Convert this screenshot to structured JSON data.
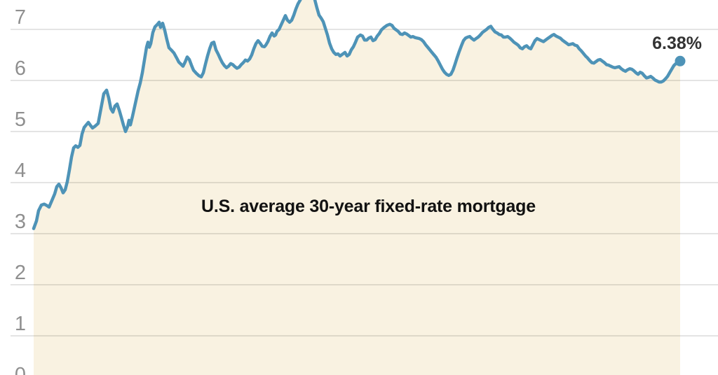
{
  "chart_data": {
    "type": "area",
    "title": "U.S. average 30-year fixed-rate mortgage",
    "end_label": "6.38%",
    "end_value": 6.38,
    "y_unit": "percent",
    "y_ticks": [
      0,
      1,
      2,
      3,
      4,
      5,
      6,
      7
    ],
    "y_visible_range": [
      0.23,
      7.57
    ],
    "x_axis_labels_visible": false,
    "grid": true,
    "legend": "none",
    "colors": {
      "line": "#4e93b7",
      "dot": "#4e93b7",
      "area": "#f9f2e1",
      "grid": "rgba(0,0,0,0.12)",
      "tick_label": "#8f8f8f",
      "title": "#121212",
      "end_label": "#333333"
    },
    "points_format": [
      "x_position_px",
      "rate_percent"
    ],
    "points": [
      [
        48,
        3.1
      ],
      [
        52,
        3.25
      ],
      [
        55,
        3.45
      ],
      [
        59,
        3.56
      ],
      [
        63,
        3.58
      ],
      [
        67,
        3.55
      ],
      [
        70,
        3.52
      ],
      [
        74,
        3.65
      ],
      [
        78,
        3.78
      ],
      [
        81,
        3.92
      ],
      [
        84,
        3.97
      ],
      [
        87,
        3.9
      ],
      [
        90,
        3.8
      ],
      [
        93,
        3.86
      ],
      [
        96,
        4.02
      ],
      [
        99,
        4.25
      ],
      [
        102,
        4.5
      ],
      [
        105,
        4.68
      ],
      [
        108,
        4.72
      ],
      [
        111,
        4.69
      ],
      [
        114,
        4.73
      ],
      [
        117,
        4.95
      ],
      [
        120,
        5.08
      ],
      [
        123,
        5.13
      ],
      [
        126,
        5.18
      ],
      [
        129,
        5.12
      ],
      [
        132,
        5.07
      ],
      [
        136,
        5.11
      ],
      [
        140,
        5.16
      ],
      [
        144,
        5.45
      ],
      [
        148,
        5.74
      ],
      [
        152,
        5.81
      ],
      [
        155,
        5.66
      ],
      [
        158,
        5.45
      ],
      [
        161,
        5.38
      ],
      [
        164,
        5.5
      ],
      [
        167,
        5.54
      ],
      [
        170,
        5.42
      ],
      [
        173,
        5.28
      ],
      [
        176,
        5.13
      ],
      [
        179,
        5.0
      ],
      [
        182,
        5.1
      ],
      [
        184,
        5.22
      ],
      [
        186,
        5.13
      ],
      [
        189,
        5.3
      ],
      [
        193,
        5.55
      ],
      [
        197,
        5.8
      ],
      [
        200,
        5.95
      ],
      [
        203,
        6.15
      ],
      [
        206,
        6.4
      ],
      [
        209,
        6.65
      ],
      [
        211,
        6.75
      ],
      [
        213,
        6.65
      ],
      [
        215,
        6.72
      ],
      [
        218,
        6.94
      ],
      [
        221,
        7.05
      ],
      [
        224,
        7.09
      ],
      [
        227,
        7.14
      ],
      [
        229,
        7.04
      ],
      [
        232,
        7.12
      ],
      [
        235,
        6.98
      ],
      [
        238,
        6.8
      ],
      [
        241,
        6.64
      ],
      [
        244,
        6.6
      ],
      [
        248,
        6.54
      ],
      [
        252,
        6.44
      ],
      [
        255,
        6.36
      ],
      [
        258,
        6.32
      ],
      [
        261,
        6.28
      ],
      [
        264,
        6.36
      ],
      [
        267,
        6.46
      ],
      [
        270,
        6.41
      ],
      [
        273,
        6.3
      ],
      [
        276,
        6.2
      ],
      [
        280,
        6.14
      ],
      [
        284,
        6.09
      ],
      [
        287,
        6.07
      ],
      [
        290,
        6.15
      ],
      [
        293,
        6.32
      ],
      [
        296,
        6.48
      ],
      [
        299,
        6.62
      ],
      [
        302,
        6.73
      ],
      [
        305,
        6.75
      ],
      [
        308,
        6.6
      ],
      [
        311,
        6.52
      ],
      [
        314,
        6.43
      ],
      [
        317,
        6.35
      ],
      [
        320,
        6.29
      ],
      [
        323,
        6.25
      ],
      [
        326,
        6.28
      ],
      [
        329,
        6.33
      ],
      [
        332,
        6.31
      ],
      [
        335,
        6.27
      ],
      [
        338,
        6.24
      ],
      [
        341,
        6.26
      ],
      [
        344,
        6.31
      ],
      [
        347,
        6.35
      ],
      [
        350,
        6.4
      ],
      [
        353,
        6.38
      ],
      [
        356,
        6.42
      ],
      [
        359,
        6.5
      ],
      [
        362,
        6.62
      ],
      [
        365,
        6.72
      ],
      [
        368,
        6.78
      ],
      [
        371,
        6.73
      ],
      [
        374,
        6.67
      ],
      [
        377,
        6.66
      ],
      [
        379,
        6.69
      ],
      [
        382,
        6.76
      ],
      [
        385,
        6.86
      ],
      [
        388,
        6.93
      ],
      [
        391,
        6.87
      ],
      [
        393,
        6.89
      ],
      [
        395,
        6.96
      ],
      [
        398,
        7.0
      ],
      [
        401,
        7.09
      ],
      [
        404,
        7.18
      ],
      [
        407,
        7.27
      ],
      [
        410,
        7.18
      ],
      [
        413,
        7.14
      ],
      [
        416,
        7.18
      ],
      [
        419,
        7.28
      ],
      [
        422,
        7.4
      ],
      [
        425,
        7.5
      ],
      [
        428,
        7.57
      ],
      [
        431,
        7.65
      ],
      [
        434,
        7.74
      ],
      [
        437,
        7.79
      ],
      [
        440,
        7.76
      ],
      [
        443,
        7.79
      ],
      [
        446,
        7.7
      ],
      [
        449,
        7.58
      ],
      [
        452,
        7.42
      ],
      [
        455,
        7.28
      ],
      [
        458,
        7.22
      ],
      [
        461,
        7.15
      ],
      [
        464,
        7.02
      ],
      [
        467,
        6.89
      ],
      [
        470,
        6.73
      ],
      [
        473,
        6.62
      ],
      [
        476,
        6.55
      ],
      [
        479,
        6.51
      ],
      [
        482,
        6.52
      ],
      [
        485,
        6.48
      ],
      [
        488,
        6.51
      ],
      [
        492,
        6.55
      ],
      [
        495,
        6.48
      ],
      [
        498,
        6.51
      ],
      [
        501,
        6.6
      ],
      [
        504,
        6.66
      ],
      [
        507,
        6.75
      ],
      [
        510,
        6.85
      ],
      [
        514,
        6.89
      ],
      [
        517,
        6.87
      ],
      [
        520,
        6.79
      ],
      [
        523,
        6.79
      ],
      [
        526,
        6.83
      ],
      [
        529,
        6.85
      ],
      [
        532,
        6.78
      ],
      [
        535,
        6.8
      ],
      [
        538,
        6.87
      ],
      [
        541,
        6.92
      ],
      [
        544,
        6.99
      ],
      [
        548,
        7.04
      ],
      [
        552,
        7.08
      ],
      [
        556,
        7.1
      ],
      [
        559,
        7.08
      ],
      [
        562,
        7.02
      ],
      [
        565,
        6.99
      ],
      [
        568,
        6.96
      ],
      [
        571,
        6.91
      ],
      [
        574,
        6.9
      ],
      [
        577,
        6.93
      ],
      [
        580,
        6.91
      ],
      [
        583,
        6.88
      ],
      [
        586,
        6.85
      ],
      [
        589,
        6.86
      ],
      [
        592,
        6.84
      ],
      [
        595,
        6.83
      ],
      [
        598,
        6.82
      ],
      [
        601,
        6.8
      ],
      [
        604,
        6.76
      ],
      [
        607,
        6.7
      ],
      [
        610,
        6.65
      ],
      [
        613,
        6.6
      ],
      [
        616,
        6.55
      ],
      [
        619,
        6.5
      ],
      [
        622,
        6.45
      ],
      [
        625,
        6.38
      ],
      [
        628,
        6.3
      ],
      [
        631,
        6.22
      ],
      [
        634,
        6.16
      ],
      [
        637,
        6.12
      ],
      [
        640,
        6.1
      ],
      [
        643,
        6.12
      ],
      [
        646,
        6.2
      ],
      [
        649,
        6.32
      ],
      [
        652,
        6.45
      ],
      [
        655,
        6.57
      ],
      [
        658,
        6.68
      ],
      [
        661,
        6.78
      ],
      [
        664,
        6.83
      ],
      [
        667,
        6.85
      ],
      [
        670,
        6.86
      ],
      [
        673,
        6.82
      ],
      [
        676,
        6.79
      ],
      [
        679,
        6.82
      ],
      [
        682,
        6.85
      ],
      [
        685,
        6.89
      ],
      [
        688,
        6.94
      ],
      [
        691,
        6.97
      ],
      [
        694,
        7.0
      ],
      [
        697,
        7.04
      ],
      [
        700,
        7.06
      ],
      [
        703,
        7.0
      ],
      [
        706,
        6.95
      ],
      [
        709,
        6.93
      ],
      [
        712,
        6.9
      ],
      [
        715,
        6.89
      ],
      [
        718,
        6.85
      ],
      [
        721,
        6.85
      ],
      [
        724,
        6.86
      ],
      [
        727,
        6.83
      ],
      [
        730,
        6.79
      ],
      [
        733,
        6.75
      ],
      [
        736,
        6.72
      ],
      [
        739,
        6.69
      ],
      [
        742,
        6.64
      ],
      [
        745,
        6.62
      ],
      [
        748,
        6.66
      ],
      [
        751,
        6.68
      ],
      [
        754,
        6.64
      ],
      [
        757,
        6.62
      ],
      [
        760,
        6.7
      ],
      [
        763,
        6.78
      ],
      [
        766,
        6.82
      ],
      [
        769,
        6.8
      ],
      [
        772,
        6.78
      ],
      [
        775,
        6.76
      ],
      [
        778,
        6.79
      ],
      [
        781,
        6.82
      ],
      [
        784,
        6.85
      ],
      [
        787,
        6.88
      ],
      [
        790,
        6.9
      ],
      [
        793,
        6.87
      ],
      [
        796,
        6.85
      ],
      [
        799,
        6.83
      ],
      [
        802,
        6.79
      ],
      [
        805,
        6.76
      ],
      [
        808,
        6.73
      ],
      [
        811,
        6.7
      ],
      [
        814,
        6.71
      ],
      [
        817,
        6.72
      ],
      [
        820,
        6.69
      ],
      [
        823,
        6.68
      ],
      [
        826,
        6.62
      ],
      [
        829,
        6.58
      ],
      [
        832,
        6.53
      ],
      [
        835,
        6.48
      ],
      [
        838,
        6.44
      ],
      [
        841,
        6.39
      ],
      [
        844,
        6.35
      ],
      [
        847,
        6.34
      ],
      [
        850,
        6.37
      ],
      [
        853,
        6.4
      ],
      [
        856,
        6.41
      ],
      [
        859,
        6.38
      ],
      [
        862,
        6.35
      ],
      [
        865,
        6.31
      ],
      [
        868,
        6.3
      ],
      [
        871,
        6.28
      ],
      [
        874,
        6.26
      ],
      [
        877,
        6.25
      ],
      [
        880,
        6.26
      ],
      [
        883,
        6.27
      ],
      [
        886,
        6.23
      ],
      [
        889,
        6.2
      ],
      [
        892,
        6.18
      ],
      [
        895,
        6.21
      ],
      [
        898,
        6.23
      ],
      [
        901,
        6.22
      ],
      [
        904,
        6.19
      ],
      [
        907,
        6.15
      ],
      [
        910,
        6.12
      ],
      [
        913,
        6.16
      ],
      [
        916,
        6.14
      ],
      [
        919,
        6.09
      ],
      [
        922,
        6.05
      ],
      [
        925,
        6.06
      ],
      [
        928,
        6.08
      ],
      [
        931,
        6.05
      ],
      [
        934,
        6.01
      ],
      [
        937,
        5.99
      ],
      [
        940,
        5.97
      ],
      [
        943,
        5.97
      ],
      [
        946,
        5.99
      ],
      [
        949,
        6.03
      ],
      [
        952,
        6.08
      ],
      [
        955,
        6.15
      ],
      [
        958,
        6.22
      ],
      [
        961,
        6.29
      ],
      [
        964,
        6.33
      ],
      [
        967,
        6.36
      ],
      [
        970,
        6.38
      ]
    ]
  }
}
